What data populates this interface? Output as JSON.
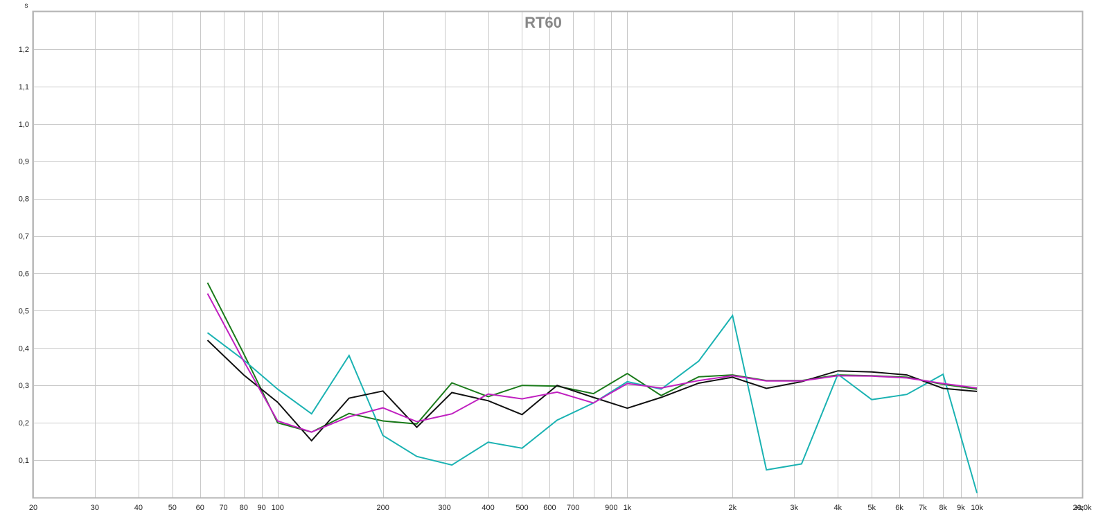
{
  "chart_data": {
    "type": "line",
    "title": "RT60",
    "y_unit": "s",
    "x_unit": "Hz",
    "x_scale": "log",
    "xlim": [
      20,
      20000
    ],
    "ylim": [
      0,
      1.3
    ],
    "grid": true,
    "y_ticks": [
      {
        "value": 0.1,
        "label": "0,1"
      },
      {
        "value": 0.2,
        "label": "0,2"
      },
      {
        "value": 0.3,
        "label": "0,3"
      },
      {
        "value": 0.4,
        "label": "0,4"
      },
      {
        "value": 0.5,
        "label": "0,5"
      },
      {
        "value": 0.6,
        "label": "0,6"
      },
      {
        "value": 0.7,
        "label": "0,7"
      },
      {
        "value": 0.8,
        "label": "0,8"
      },
      {
        "value": 0.9,
        "label": "0,9"
      },
      {
        "value": 1.0,
        "label": "1,0"
      },
      {
        "value": 1.1,
        "label": "1,1"
      },
      {
        "value": 1.2,
        "label": "1,2"
      }
    ],
    "x_ticks": [
      {
        "value": 20,
        "label": "20"
      },
      {
        "value": 30,
        "label": "30"
      },
      {
        "value": 40,
        "label": "40"
      },
      {
        "value": 50,
        "label": "50"
      },
      {
        "value": 60,
        "label": "60"
      },
      {
        "value": 70,
        "label": "70"
      },
      {
        "value": 80,
        "label": "80"
      },
      {
        "value": 90,
        "label": "90"
      },
      {
        "value": 100,
        "label": "100"
      },
      {
        "value": 200,
        "label": "200"
      },
      {
        "value": 300,
        "label": "300"
      },
      {
        "value": 400,
        "label": "400"
      },
      {
        "value": 500,
        "label": "500"
      },
      {
        "value": 600,
        "label": "600"
      },
      {
        "value": 700,
        "label": "700"
      },
      {
        "value": 900,
        "label": "900"
      },
      {
        "value": 1000,
        "label": "1k"
      },
      {
        "value": 2000,
        "label": "2k"
      },
      {
        "value": 3000,
        "label": "3k"
      },
      {
        "value": 4000,
        "label": "4k"
      },
      {
        "value": 5000,
        "label": "5k"
      },
      {
        "value": 6000,
        "label": "6k"
      },
      {
        "value": 7000,
        "label": "7k"
      },
      {
        "value": 8000,
        "label": "8k"
      },
      {
        "value": 9000,
        "label": "9k"
      },
      {
        "value": 10000,
        "label": "10k"
      },
      {
        "value": 20000,
        "label": "20,0k"
      }
    ],
    "x_gridlines": [
      20,
      30,
      40,
      50,
      60,
      70,
      80,
      90,
      100,
      200,
      300,
      400,
      500,
      600,
      700,
      800,
      900,
      1000,
      2000,
      3000,
      4000,
      5000,
      6000,
      7000,
      8000,
      9000,
      10000,
      20000
    ],
    "x": [
      63,
      80,
      100,
      125,
      160,
      200,
      250,
      315,
      400,
      500,
      630,
      800,
      1000,
      1250,
      1600,
      2000,
      2500,
      3150,
      4000,
      5000,
      6300,
      8000,
      10000
    ],
    "series": [
      {
        "color": "#1a7a1a",
        "values": [
          0.575,
          0.385,
          0.2,
          0.175,
          0.225,
          0.205,
          0.197,
          0.307,
          0.27,
          0.3,
          0.298,
          0.278,
          0.332,
          0.273,
          0.323,
          0.328,
          0.313,
          0.313,
          0.328,
          0.326,
          0.322,
          0.303,
          0.29
        ]
      },
      {
        "color": "#1ab2b2",
        "values": [
          0.441,
          0.368,
          0.29,
          0.224,
          0.38,
          0.166,
          0.11,
          0.087,
          0.148,
          0.132,
          0.207,
          0.253,
          0.31,
          0.29,
          0.365,
          0.487,
          0.074,
          0.09,
          0.33,
          0.262,
          0.276,
          0.33,
          0.012
        ]
      },
      {
        "color": "#111111",
        "values": [
          0.421,
          0.328,
          0.255,
          0.152,
          0.266,
          0.285,
          0.188,
          0.281,
          0.259,
          0.222,
          0.3,
          0.268,
          0.239,
          0.268,
          0.306,
          0.322,
          0.292,
          0.31,
          0.339,
          0.336,
          0.328,
          0.292,
          0.284
        ]
      },
      {
        "color": "#c020c0",
        "values": [
          0.546,
          0.365,
          0.205,
          0.175,
          0.216,
          0.24,
          0.203,
          0.224,
          0.277,
          0.264,
          0.282,
          0.253,
          0.305,
          0.293,
          0.313,
          0.326,
          0.312,
          0.312,
          0.326,
          0.325,
          0.32,
          0.305,
          0.293
        ]
      }
    ]
  }
}
